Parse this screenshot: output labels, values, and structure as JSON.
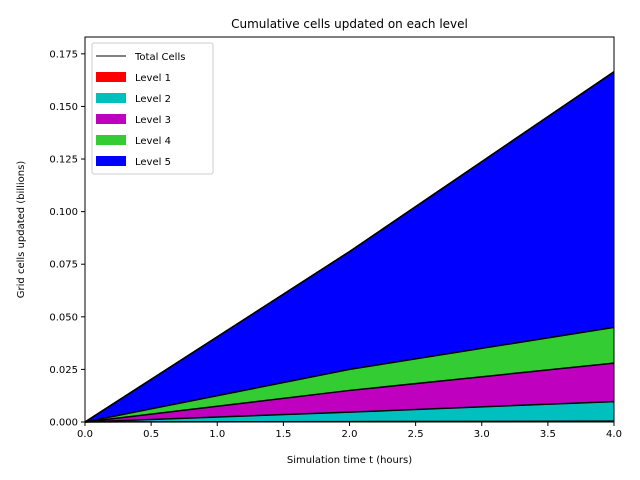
{
  "chart_data": {
    "type": "area",
    "title": "Cumulative cells updated on each level",
    "xlabel": "Simulation time t (hours)",
    "ylabel": "Grid cells updated (billions)",
    "xlim": [
      0.0,
      4.0
    ],
    "ylim": [
      0.0,
      0.183
    ],
    "x_ticks": [
      "0.0",
      "0.5",
      "1.0",
      "1.5",
      "2.0",
      "2.5",
      "3.0",
      "3.5",
      "4.0"
    ],
    "y_ticks": [
      "0.000",
      "0.025",
      "0.050",
      "0.075",
      "0.100",
      "0.125",
      "0.150",
      "0.175"
    ],
    "x": [
      0.0,
      2.0,
      4.0
    ],
    "stacked": true,
    "series": [
      {
        "name": "Level 1",
        "color": "#ff0000",
        "values": [
          0.0,
          0.0002,
          0.0004
        ]
      },
      {
        "name": "Level 2",
        "color": "#00bfbf",
        "values": [
          0.0,
          0.0045,
          0.0093
        ]
      },
      {
        "name": "Level 3",
        "color": "#bf00bf",
        "values": [
          0.0,
          0.0103,
          0.0183
        ]
      },
      {
        "name": "Level 4",
        "color": "#33cc33",
        "values": [
          0.0,
          0.01,
          0.017
        ]
      },
      {
        "name": "Level 5",
        "color": "#0000ff",
        "values": [
          0.0,
          0.056,
          0.1215
        ]
      }
    ],
    "total": {
      "name": "Total Cells",
      "color": "#000000",
      "values": [
        0.0,
        0.081,
        0.1665
      ]
    },
    "legend_position": "top-left",
    "grid": false
  }
}
